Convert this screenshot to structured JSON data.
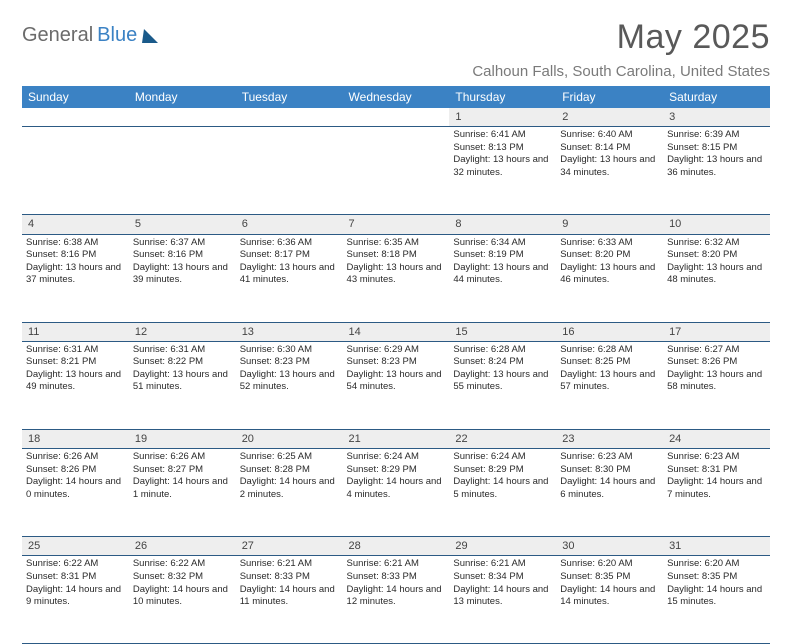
{
  "logo": {
    "part1": "General",
    "part2": "Blue"
  },
  "title": "May 2025",
  "location": "Calhoun Falls, South Carolina, United States",
  "weekdays": [
    "Sunday",
    "Monday",
    "Tuesday",
    "Wednesday",
    "Thursday",
    "Friday",
    "Saturday"
  ],
  "colors": {
    "header_bg": "#3b82c4",
    "header_text": "#ffffff",
    "border": "#2c5a84",
    "daynum_bg": "#eeeeee",
    "body_text": "#333333",
    "title_text": "#595959",
    "location_text": "#7a7a7a"
  },
  "weeks": [
    [
      {
        "num": "",
        "text": ""
      },
      {
        "num": "",
        "text": ""
      },
      {
        "num": "",
        "text": ""
      },
      {
        "num": "",
        "text": ""
      },
      {
        "num": "1",
        "text": "Sunrise: 6:41 AM\nSunset: 8:13 PM\nDaylight: 13 hours and 32 minutes."
      },
      {
        "num": "2",
        "text": "Sunrise: 6:40 AM\nSunset: 8:14 PM\nDaylight: 13 hours and 34 minutes."
      },
      {
        "num": "3",
        "text": "Sunrise: 6:39 AM\nSunset: 8:15 PM\nDaylight: 13 hours and 36 minutes."
      }
    ],
    [
      {
        "num": "4",
        "text": "Sunrise: 6:38 AM\nSunset: 8:16 PM\nDaylight: 13 hours and 37 minutes."
      },
      {
        "num": "5",
        "text": "Sunrise: 6:37 AM\nSunset: 8:16 PM\nDaylight: 13 hours and 39 minutes."
      },
      {
        "num": "6",
        "text": "Sunrise: 6:36 AM\nSunset: 8:17 PM\nDaylight: 13 hours and 41 minutes."
      },
      {
        "num": "7",
        "text": "Sunrise: 6:35 AM\nSunset: 8:18 PM\nDaylight: 13 hours and 43 minutes."
      },
      {
        "num": "8",
        "text": "Sunrise: 6:34 AM\nSunset: 8:19 PM\nDaylight: 13 hours and 44 minutes."
      },
      {
        "num": "9",
        "text": "Sunrise: 6:33 AM\nSunset: 8:20 PM\nDaylight: 13 hours and 46 minutes."
      },
      {
        "num": "10",
        "text": "Sunrise: 6:32 AM\nSunset: 8:20 PM\nDaylight: 13 hours and 48 minutes."
      }
    ],
    [
      {
        "num": "11",
        "text": "Sunrise: 6:31 AM\nSunset: 8:21 PM\nDaylight: 13 hours and 49 minutes."
      },
      {
        "num": "12",
        "text": "Sunrise: 6:31 AM\nSunset: 8:22 PM\nDaylight: 13 hours and 51 minutes."
      },
      {
        "num": "13",
        "text": "Sunrise: 6:30 AM\nSunset: 8:23 PM\nDaylight: 13 hours and 52 minutes."
      },
      {
        "num": "14",
        "text": "Sunrise: 6:29 AM\nSunset: 8:23 PM\nDaylight: 13 hours and 54 minutes."
      },
      {
        "num": "15",
        "text": "Sunrise: 6:28 AM\nSunset: 8:24 PM\nDaylight: 13 hours and 55 minutes."
      },
      {
        "num": "16",
        "text": "Sunrise: 6:28 AM\nSunset: 8:25 PM\nDaylight: 13 hours and 57 minutes."
      },
      {
        "num": "17",
        "text": "Sunrise: 6:27 AM\nSunset: 8:26 PM\nDaylight: 13 hours and 58 minutes."
      }
    ],
    [
      {
        "num": "18",
        "text": "Sunrise: 6:26 AM\nSunset: 8:26 PM\nDaylight: 14 hours and 0 minutes."
      },
      {
        "num": "19",
        "text": "Sunrise: 6:26 AM\nSunset: 8:27 PM\nDaylight: 14 hours and 1 minute."
      },
      {
        "num": "20",
        "text": "Sunrise: 6:25 AM\nSunset: 8:28 PM\nDaylight: 14 hours and 2 minutes."
      },
      {
        "num": "21",
        "text": "Sunrise: 6:24 AM\nSunset: 8:29 PM\nDaylight: 14 hours and 4 minutes."
      },
      {
        "num": "22",
        "text": "Sunrise: 6:24 AM\nSunset: 8:29 PM\nDaylight: 14 hours and 5 minutes."
      },
      {
        "num": "23",
        "text": "Sunrise: 6:23 AM\nSunset: 8:30 PM\nDaylight: 14 hours and 6 minutes."
      },
      {
        "num": "24",
        "text": "Sunrise: 6:23 AM\nSunset: 8:31 PM\nDaylight: 14 hours and 7 minutes."
      }
    ],
    [
      {
        "num": "25",
        "text": "Sunrise: 6:22 AM\nSunset: 8:31 PM\nDaylight: 14 hours and 9 minutes."
      },
      {
        "num": "26",
        "text": "Sunrise: 6:22 AM\nSunset: 8:32 PM\nDaylight: 14 hours and 10 minutes."
      },
      {
        "num": "27",
        "text": "Sunrise: 6:21 AM\nSunset: 8:33 PM\nDaylight: 14 hours and 11 minutes."
      },
      {
        "num": "28",
        "text": "Sunrise: 6:21 AM\nSunset: 8:33 PM\nDaylight: 14 hours and 12 minutes."
      },
      {
        "num": "29",
        "text": "Sunrise: 6:21 AM\nSunset: 8:34 PM\nDaylight: 14 hours and 13 minutes."
      },
      {
        "num": "30",
        "text": "Sunrise: 6:20 AM\nSunset: 8:35 PM\nDaylight: 14 hours and 14 minutes."
      },
      {
        "num": "31",
        "text": "Sunrise: 6:20 AM\nSunset: 8:35 PM\nDaylight: 14 hours and 15 minutes."
      }
    ]
  ]
}
